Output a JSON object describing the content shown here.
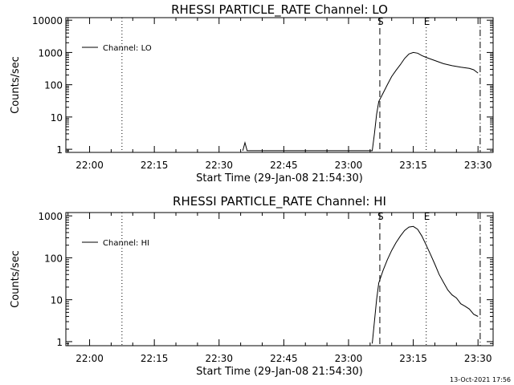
{
  "chart_data": [
    {
      "type": "line",
      "title": "RHESSI PARTICLE_RATE Channel: LO",
      "xlabel": "Start Time (29-Jan-08 21:54:30)",
      "ylabel": "Counts/sec",
      "y_scale": "log",
      "ylim": [
        0.8,
        12000
      ],
      "xlim": [
        "21:54:30",
        "23:33:30"
      ],
      "x_ticks": [
        "22:00",
        "22:15",
        "22:30",
        "22:45",
        "23:00",
        "23:15",
        "23:30"
      ],
      "y_ticks": [
        "1",
        "10",
        "100",
        "1000",
        "10000"
      ],
      "legend": {
        "position": "top-left",
        "entries": [
          "Channel: LO"
        ]
      },
      "markers": [
        {
          "label": "S",
          "time": "23:07:15",
          "style": "dashed"
        },
        {
          "label": "E",
          "time": "23:18:00",
          "style": "dotted"
        }
      ],
      "vlines": [
        {
          "time": "22:07:30",
          "style": "dotted"
        },
        {
          "time": "23:30:30",
          "style": "dash-dot"
        }
      ],
      "series": [
        {
          "name": "Channel: LO",
          "points": [
            [
              "22:35:30",
              0.9
            ],
            [
              "22:36:00",
              1.6
            ],
            [
              "22:36:30",
              0.9
            ],
            [
              "23:05:30",
              0.9
            ],
            [
              "23:06:00",
              3
            ],
            [
              "23:06:30",
              12
            ],
            [
              "23:07:00",
              30
            ],
            [
              "23:08:00",
              55
            ],
            [
              "23:09:00",
              100
            ],
            [
              "23:10:00",
              180
            ],
            [
              "23:11:00",
              280
            ],
            [
              "23:12:00",
              420
            ],
            [
              "23:13:00",
              650
            ],
            [
              "23:14:00",
              900
            ],
            [
              "23:15:00",
              1000
            ],
            [
              "23:16:00",
              950
            ],
            [
              "23:17:00",
              800
            ],
            [
              "23:18:00",
              700
            ],
            [
              "23:20:00",
              560
            ],
            [
              "23:22:00",
              450
            ],
            [
              "23:24:00",
              390
            ],
            [
              "23:26:00",
              350
            ],
            [
              "23:28:00",
              320
            ],
            [
              "23:29:00",
              290
            ],
            [
              "23:30:00",
              230
            ]
          ]
        }
      ]
    },
    {
      "type": "line",
      "title": "RHESSI PARTICLE_RATE Channel: HI",
      "xlabel": "Start Time (29-Jan-08 21:54:30)",
      "ylabel": "Counts/sec",
      "y_scale": "log",
      "ylim": [
        0.8,
        1200
      ],
      "xlim": [
        "21:54:30",
        "23:33:30"
      ],
      "x_ticks": [
        "22:00",
        "22:15",
        "22:30",
        "22:45",
        "23:00",
        "23:15",
        "23:30"
      ],
      "y_ticks": [
        "1",
        "10",
        "100",
        "1000"
      ],
      "legend": {
        "position": "top-left",
        "entries": [
          "Channel: HI"
        ]
      },
      "markers": [
        {
          "label": "S",
          "time": "23:07:15",
          "style": "dashed"
        },
        {
          "label": "E",
          "time": "23:18:00",
          "style": "dotted"
        }
      ],
      "vlines": [
        {
          "time": "22:07:30",
          "style": "dotted"
        },
        {
          "time": "23:30:30",
          "style": "dash-dot"
        }
      ],
      "series": [
        {
          "name": "Channel: HI",
          "points": [
            [
              "23:05:30",
              0.9
            ],
            [
              "23:06:00",
              3
            ],
            [
              "23:06:30",
              10
            ],
            [
              "23:07:00",
              25
            ],
            [
              "23:08:00",
              50
            ],
            [
              "23:09:00",
              90
            ],
            [
              "23:10:00",
              150
            ],
            [
              "23:11:00",
              230
            ],
            [
              "23:12:00",
              330
            ],
            [
              "23:13:00",
              450
            ],
            [
              "23:14:00",
              540
            ],
            [
              "23:15:00",
              560
            ],
            [
              "23:16:00",
              480
            ],
            [
              "23:17:00",
              330
            ],
            [
              "23:18:00",
              200
            ],
            [
              "23:19:00",
              120
            ],
            [
              "23:20:00",
              70
            ],
            [
              "23:21:00",
              40
            ],
            [
              "23:22:00",
              26
            ],
            [
              "23:23:00",
              17
            ],
            [
              "23:24:00",
              13
            ],
            [
              "23:25:00",
              11
            ],
            [
              "23:26:00",
              8
            ],
            [
              "23:27:00",
              7
            ],
            [
              "23:28:00",
              6
            ],
            [
              "23:29:00",
              4.5
            ],
            [
              "23:30:00",
              4
            ]
          ]
        }
      ]
    }
  ],
  "footer": {
    "timestamp": "13-Oct-2021 17:56"
  }
}
